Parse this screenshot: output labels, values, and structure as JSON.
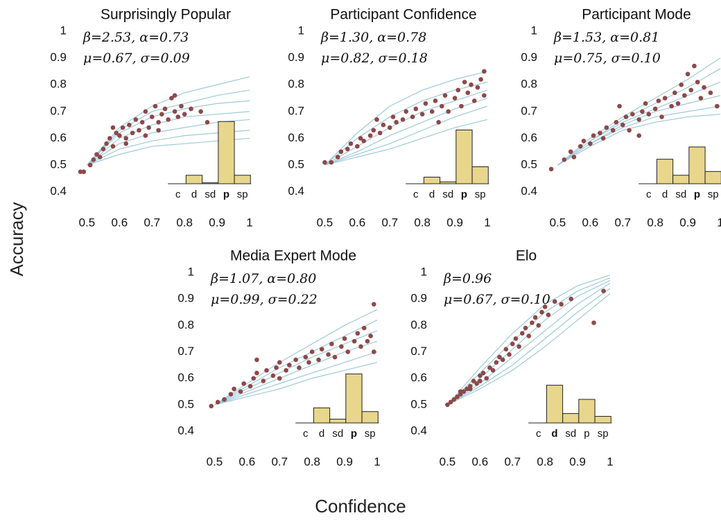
{
  "xlabel": "Confidence",
  "ylabel": "Accuracy",
  "chart_data": [
    {
      "type": "scatter",
      "title": "Surprisingly Popular",
      "annotations": [
        "β=2.53, α=0.73",
        "μ=0.67, σ=0.09"
      ],
      "xlim": [
        0.45,
        1
      ],
      "ylim": [
        0.35,
        1
      ],
      "xticks": [
        0.5,
        0.6,
        0.7,
        0.8,
        0.9,
        1
      ],
      "yticks": [
        0.4,
        0.5,
        0.6,
        0.7,
        0.8,
        0.9,
        1
      ],
      "point_color": "#8e4848",
      "curve_color": "#9ec9da",
      "points": {
        "x": [
          0.48,
          0.49,
          0.51,
          0.52,
          0.53,
          0.54,
          0.55,
          0.56,
          0.57,
          0.58,
          0.59,
          0.6,
          0.61,
          0.62,
          0.63,
          0.64,
          0.65,
          0.66,
          0.67,
          0.68,
          0.69,
          0.7,
          0.71,
          0.72,
          0.73,
          0.74,
          0.75,
          0.76,
          0.77,
          0.78,
          0.79,
          0.8,
          0.82,
          0.85,
          0.87,
          0.58,
          0.62,
          0.68,
          0.72,
          0.77
        ],
        "y": [
          0.475,
          0.475,
          0.5,
          0.52,
          0.54,
          0.53,
          0.56,
          0.58,
          0.6,
          0.57,
          0.62,
          0.61,
          0.64,
          0.6,
          0.65,
          0.62,
          0.67,
          0.63,
          0.66,
          0.7,
          0.64,
          0.68,
          0.72,
          0.66,
          0.69,
          0.71,
          0.67,
          0.75,
          0.7,
          0.68,
          0.72,
          0.69,
          0.71,
          0.7,
          0.66,
          0.64,
          0.58,
          0.61,
          0.63,
          0.76
        ]
      },
      "curve_x": [
        0.5,
        0.6,
        0.7,
        0.8,
        0.9,
        1
      ],
      "curves": [
        [
          0.5,
          0.64,
          0.72,
          0.77,
          0.8,
          0.83
        ],
        [
          0.5,
          0.62,
          0.68,
          0.71,
          0.73,
          0.74
        ],
        [
          0.5,
          0.6,
          0.65,
          0.68,
          0.69,
          0.7
        ],
        [
          0.5,
          0.58,
          0.62,
          0.64,
          0.66,
          0.67
        ],
        [
          0.5,
          0.56,
          0.59,
          0.61,
          0.62,
          0.63
        ],
        [
          0.5,
          0.54,
          0.57,
          0.58,
          0.59,
          0.6
        ],
        [
          0.5,
          0.63,
          0.7,
          0.73,
          0.76,
          0.78
        ]
      ],
      "inset": {
        "type": "bar",
        "categories": [
          "c",
          "d",
          "sd",
          "p",
          "sp"
        ],
        "values": [
          0,
          0.09,
          0.01,
          0.66,
          0.09
        ],
        "highlight": 3,
        "color": "#e8d68c"
      }
    },
    {
      "type": "scatter",
      "title": "Participant Confidence",
      "annotations": [
        "β=1.30, α=0.78",
        "μ=0.82, σ=0.18"
      ],
      "xlim": [
        0.45,
        1
      ],
      "ylim": [
        0.35,
        1
      ],
      "xticks": [
        0.5,
        0.6,
        0.7,
        0.8,
        0.9,
        1
      ],
      "yticks": [
        0.4,
        0.5,
        0.6,
        0.7,
        0.8,
        0.9,
        1
      ],
      "point_color": "#8e4848",
      "curve_color": "#9ec9da",
      "points": {
        "x": [
          0.5,
          0.52,
          0.54,
          0.55,
          0.57,
          0.58,
          0.6,
          0.61,
          0.62,
          0.64,
          0.65,
          0.67,
          0.68,
          0.7,
          0.71,
          0.72,
          0.74,
          0.75,
          0.77,
          0.78,
          0.8,
          0.81,
          0.83,
          0.84,
          0.86,
          0.87,
          0.88,
          0.9,
          0.91,
          0.92,
          0.94,
          0.95,
          0.96,
          0.97,
          0.98,
          0.99,
          0.99,
          0.93,
          0.85,
          0.66
        ],
        "y": [
          0.51,
          0.51,
          0.53,
          0.55,
          0.56,
          0.58,
          0.57,
          0.6,
          0.59,
          0.61,
          0.63,
          0.62,
          0.65,
          0.64,
          0.68,
          0.66,
          0.67,
          0.7,
          0.68,
          0.71,
          0.69,
          0.73,
          0.7,
          0.74,
          0.72,
          0.76,
          0.7,
          0.75,
          0.78,
          0.72,
          0.77,
          0.8,
          0.74,
          0.79,
          0.82,
          0.76,
          0.85,
          0.81,
          0.66,
          0.67
        ]
      },
      "curve_x": [
        0.5,
        0.6,
        0.7,
        0.8,
        0.9,
        1
      ],
      "curves": [
        [
          0.5,
          0.62,
          0.72,
          0.78,
          0.82,
          0.85
        ],
        [
          0.5,
          0.6,
          0.68,
          0.74,
          0.78,
          0.81
        ],
        [
          0.5,
          0.57,
          0.64,
          0.7,
          0.74,
          0.78
        ],
        [
          0.5,
          0.55,
          0.61,
          0.66,
          0.71,
          0.75
        ],
        [
          0.5,
          0.54,
          0.58,
          0.63,
          0.68,
          0.72
        ],
        [
          0.5,
          0.53,
          0.56,
          0.6,
          0.64,
          0.67
        ]
      ],
      "inset": {
        "type": "bar",
        "categories": [
          "c",
          "d",
          "sd",
          "p",
          "sp"
        ],
        "values": [
          0,
          0.07,
          0.02,
          0.57,
          0.18
        ],
        "highlight": 3,
        "color": "#e8d68c"
      }
    },
    {
      "type": "scatter",
      "title": "Participant Mode",
      "annotations": [
        "β=1.53, α=0.81",
        "μ=0.75, σ=0.10"
      ],
      "xlim": [
        0.45,
        1
      ],
      "ylim": [
        0.35,
        1
      ],
      "xticks": [
        0.5,
        0.6,
        0.7,
        0.8,
        0.9,
        1
      ],
      "yticks": [
        0.4,
        0.5,
        0.6,
        0.7,
        0.8,
        0.9,
        1
      ],
      "point_color": "#8e4848",
      "curve_color": "#9ec9da",
      "points": {
        "x": [
          0.48,
          0.52,
          0.54,
          0.55,
          0.57,
          0.58,
          0.6,
          0.61,
          0.63,
          0.64,
          0.65,
          0.67,
          0.68,
          0.7,
          0.71,
          0.72,
          0.73,
          0.75,
          0.76,
          0.77,
          0.78,
          0.8,
          0.81,
          0.82,
          0.83,
          0.85,
          0.86,
          0.87,
          0.88,
          0.89,
          0.9,
          0.91,
          0.92,
          0.93,
          0.94,
          0.95,
          0.97,
          0.99,
          0.75,
          0.69
        ],
        "y": [
          0.485,
          0.52,
          0.55,
          0.53,
          0.57,
          0.59,
          0.58,
          0.61,
          0.62,
          0.6,
          0.64,
          0.63,
          0.66,
          0.65,
          0.68,
          0.63,
          0.69,
          0.67,
          0.7,
          0.73,
          0.69,
          0.71,
          0.74,
          0.68,
          0.75,
          0.72,
          0.77,
          0.73,
          0.8,
          0.76,
          0.84,
          0.78,
          0.87,
          0.81,
          0.75,
          0.79,
          0.77,
          0.72,
          0.61,
          0.72
        ]
      },
      "curve_x": [
        0.5,
        0.6,
        0.7,
        0.8,
        0.9,
        1
      ],
      "curves": [
        [
          0.5,
          0.6,
          0.68,
          0.75,
          0.82,
          0.9
        ],
        [
          0.5,
          0.59,
          0.67,
          0.73,
          0.79,
          0.86
        ],
        [
          0.5,
          0.59,
          0.66,
          0.71,
          0.76,
          0.81
        ],
        [
          0.5,
          0.58,
          0.65,
          0.7,
          0.73,
          0.76
        ],
        [
          0.5,
          0.58,
          0.64,
          0.68,
          0.7,
          0.72
        ],
        [
          0.5,
          0.57,
          0.63,
          0.66,
          0.68,
          0.69
        ]
      ],
      "inset": {
        "type": "bar",
        "categories": [
          "c",
          "d",
          "sd",
          "p",
          "sp"
        ],
        "values": [
          0,
          0.26,
          0.09,
          0.39,
          0.13
        ],
        "highlight": 3,
        "color": "#e8d68c"
      }
    },
    {
      "type": "scatter",
      "title": "Media Expert Mode",
      "annotations": [
        "β=1.07, α=0.80",
        "μ=0.99, σ=0.22"
      ],
      "xlim": [
        0.45,
        1
      ],
      "ylim": [
        0.35,
        1
      ],
      "xticks": [
        0.5,
        0.6,
        0.7,
        0.8,
        0.9,
        1
      ],
      "yticks": [
        0.4,
        0.5,
        0.6,
        0.7,
        0.8,
        0.9,
        1
      ],
      "point_color": "#8e4848",
      "curve_color": "#9ec9da",
      "points": {
        "x": [
          0.49,
          0.51,
          0.53,
          0.55,
          0.56,
          0.58,
          0.59,
          0.61,
          0.62,
          0.63,
          0.65,
          0.66,
          0.68,
          0.69,
          0.7,
          0.72,
          0.73,
          0.75,
          0.76,
          0.78,
          0.79,
          0.8,
          0.82,
          0.83,
          0.85,
          0.86,
          0.87,
          0.89,
          0.9,
          0.91,
          0.93,
          0.94,
          0.95,
          0.96,
          0.97,
          0.98,
          0.99,
          0.99,
          0.63,
          0.7
        ],
        "y": [
          0.495,
          0.51,
          0.52,
          0.54,
          0.56,
          0.55,
          0.58,
          0.57,
          0.6,
          0.62,
          0.59,
          0.63,
          0.61,
          0.64,
          0.66,
          0.63,
          0.65,
          0.67,
          0.64,
          0.68,
          0.66,
          0.7,
          0.67,
          0.71,
          0.69,
          0.73,
          0.68,
          0.72,
          0.75,
          0.7,
          0.74,
          0.77,
          0.72,
          0.79,
          0.74,
          0.76,
          0.88,
          0.7,
          0.67,
          0.6
        ]
      },
      "curve_x": [
        0.5,
        0.6,
        0.7,
        0.8,
        0.9,
        1
      ],
      "curves": [
        [
          0.5,
          0.58,
          0.66,
          0.73,
          0.8,
          0.86
        ],
        [
          0.5,
          0.57,
          0.64,
          0.7,
          0.76,
          0.82
        ],
        [
          0.5,
          0.56,
          0.62,
          0.68,
          0.73,
          0.78
        ],
        [
          0.5,
          0.55,
          0.6,
          0.65,
          0.7,
          0.74
        ],
        [
          0.5,
          0.54,
          0.58,
          0.62,
          0.66,
          0.7
        ],
        [
          0.5,
          0.53,
          0.56,
          0.6,
          0.63,
          0.66
        ]
      ],
      "inset": {
        "type": "bar",
        "categories": [
          "c",
          "d",
          "sd",
          "p",
          "sp"
        ],
        "values": [
          0,
          0.16,
          0.04,
          0.52,
          0.12
        ],
        "highlight": 3,
        "color": "#e8d68c"
      }
    },
    {
      "type": "scatter",
      "title": "Elo",
      "annotations": [
        "β=0.96",
        "μ=0.67, σ=0.10"
      ],
      "xlim": [
        0.45,
        1
      ],
      "ylim": [
        0.35,
        1
      ],
      "xticks": [
        0.5,
        0.6,
        0.7,
        0.8,
        0.9,
        1
      ],
      "yticks": [
        0.4,
        0.5,
        0.6,
        0.7,
        0.8,
        0.9,
        1
      ],
      "point_color": "#8e4848",
      "curve_color": "#9ec9da",
      "points": {
        "x": [
          0.5,
          0.51,
          0.52,
          0.53,
          0.54,
          0.55,
          0.56,
          0.57,
          0.58,
          0.59,
          0.6,
          0.61,
          0.62,
          0.63,
          0.64,
          0.65,
          0.66,
          0.67,
          0.68,
          0.69,
          0.7,
          0.71,
          0.72,
          0.73,
          0.74,
          0.75,
          0.76,
          0.77,
          0.78,
          0.79,
          0.8,
          0.81,
          0.83,
          0.85,
          0.88,
          0.95,
          0.98,
          0.6,
          0.57,
          0.54
        ],
        "y": [
          0.5,
          0.51,
          0.52,
          0.53,
          0.54,
          0.55,
          0.56,
          0.57,
          0.59,
          0.58,
          0.61,
          0.62,
          0.6,
          0.64,
          0.63,
          0.66,
          0.68,
          0.67,
          0.71,
          0.69,
          0.73,
          0.75,
          0.72,
          0.77,
          0.79,
          0.76,
          0.81,
          0.83,
          0.8,
          0.85,
          0.87,
          0.84,
          0.89,
          0.88,
          0.9,
          0.81,
          0.93,
          0.59,
          0.56,
          0.55
        ]
      },
      "curve_x": [
        0.5,
        0.6,
        0.7,
        0.8,
        0.9,
        1
      ],
      "curves": [
        [
          0.5,
          0.64,
          0.77,
          0.88,
          0.95,
          0.99
        ],
        [
          0.5,
          0.62,
          0.74,
          0.85,
          0.93,
          0.98
        ],
        [
          0.5,
          0.6,
          0.71,
          0.82,
          0.91,
          0.97
        ],
        [
          0.5,
          0.58,
          0.68,
          0.78,
          0.88,
          0.96
        ],
        [
          0.5,
          0.57,
          0.65,
          0.75,
          0.85,
          0.94
        ],
        [
          0.5,
          0.56,
          0.63,
          0.72,
          0.82,
          0.92
        ]
      ],
      "inset": {
        "type": "bar",
        "categories": [
          "c",
          "d",
          "sd",
          "p",
          "sp"
        ],
        "values": [
          0,
          0.4,
          0.1,
          0.25,
          0.07
        ],
        "highlight": 1,
        "color": "#e8d68c"
      }
    }
  ]
}
